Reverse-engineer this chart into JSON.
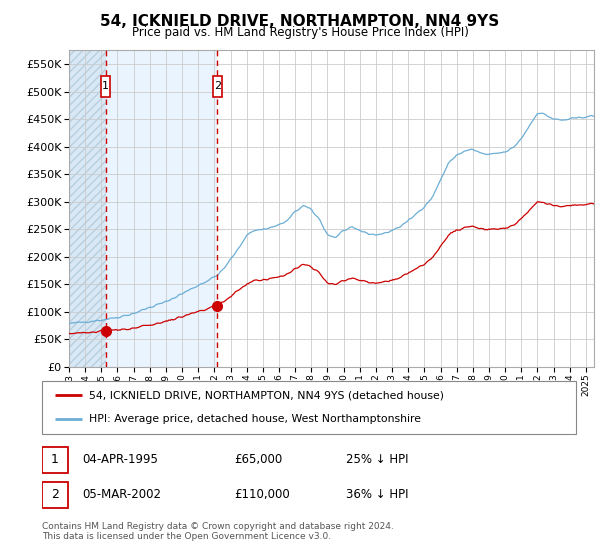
{
  "title": "54, ICKNIELD DRIVE, NORTHAMPTON, NN4 9YS",
  "subtitle": "Price paid vs. HM Land Registry's House Price Index (HPI)",
  "legend_line1": "54, ICKNIELD DRIVE, NORTHAMPTON, NN4 9YS (detached house)",
  "legend_line2": "HPI: Average price, detached house, West Northamptonshire",
  "table_rows": [
    {
      "num": "1",
      "date": "04-APR-1995",
      "price": "£65,000",
      "pct": "25% ↓ HPI"
    },
    {
      "num": "2",
      "date": "05-MAR-2002",
      "price": "£110,000",
      "pct": "36% ↓ HPI"
    }
  ],
  "footnote": "Contains HM Land Registry data © Crown copyright and database right 2024.\nThis data is licensed under the Open Government Licence v3.0.",
  "purchase1_date": 1995.27,
  "purchase1_price": 65000,
  "purchase2_date": 2002.18,
  "purchase2_price": 110000,
  "hpi_color": "#6baed6",
  "price_color": "#cc0000",
  "bg_shaded_color": "#ddeeff",
  "vline_color": "#cc0000",
  "box_color": "#cc0000",
  "grid_color": "#cccccc",
  "hatch_color": "#b0c8e0",
  "ylim_min": 0,
  "ylim_max": 575000,
  "xlim_min": 1993.0,
  "xlim_max": 2025.5
}
